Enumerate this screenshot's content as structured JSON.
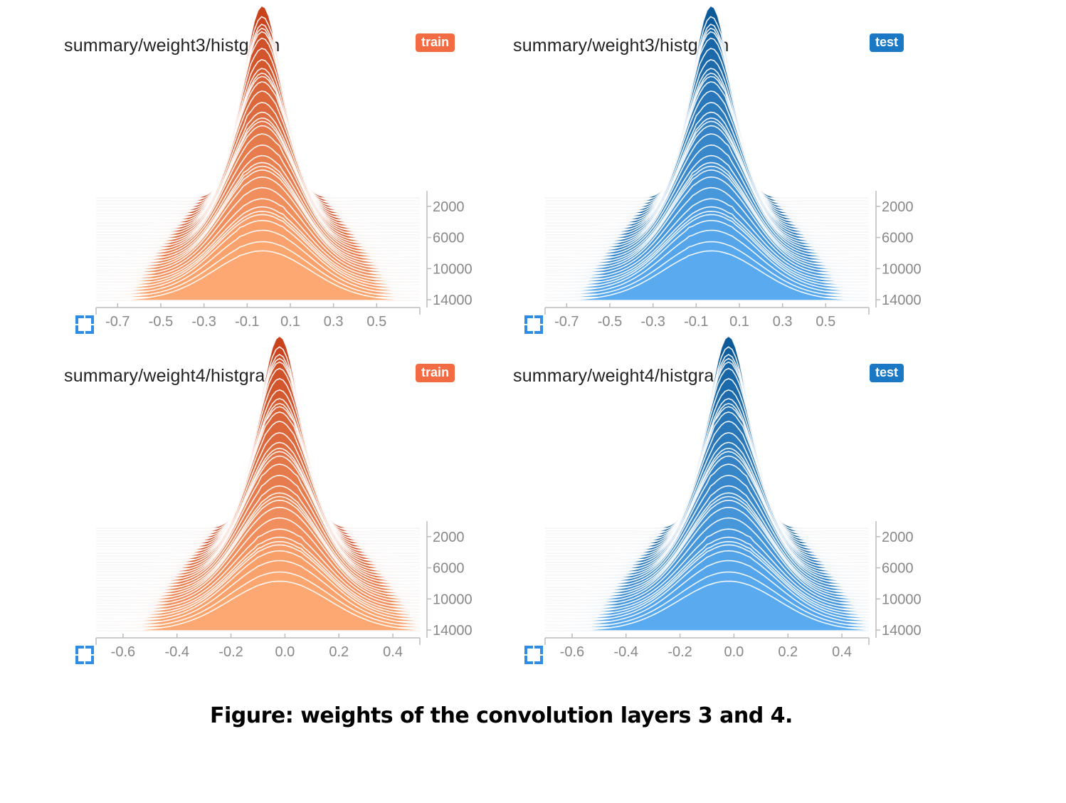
{
  "caption": "Figure: weights of the convolution layers 3 and 4.",
  "colors": {
    "train_badge": "#f26b43",
    "test_badge": "#1b78c4",
    "train_dark": "#c8421c",
    "train_light": "#fda872",
    "test_dark": "#0d5a99",
    "test_light": "#5aaaf0",
    "expand_icon": "#2f8de4"
  },
  "panels": [
    {
      "title": "summary/weight3/histgram",
      "badge": "train",
      "expand_icon": "expand-icon"
    },
    {
      "title": "summary/weight3/histgram",
      "badge": "test",
      "expand_icon": "expand-icon"
    },
    {
      "title": "summary/weight4/histgram",
      "badge": "train",
      "expand_icon": "expand-icon"
    },
    {
      "title": "summary/weight4/histgram",
      "badge": "test",
      "expand_icon": "expand-icon"
    }
  ],
  "chart_data": [
    {
      "type": "area",
      "title": "summary/weight3/histgram",
      "run": "train",
      "xlim": [
        -0.8,
        0.7
      ],
      "x_ticks": [
        "-0.7",
        "-0.5",
        "-0.3",
        "-0.1",
        "0.1",
        "0.3",
        "0.5"
      ],
      "step_ticks": [
        "2000",
        "6000",
        "10000",
        "14000"
      ],
      "step_range": [
        0,
        15000
      ],
      "peak_center": -0.03,
      "peak_width": 0.12,
      "color_dark": "#c8421c",
      "color_light": "#fda872"
    },
    {
      "type": "area",
      "title": "summary/weight3/histgram",
      "run": "test",
      "xlim": [
        -0.8,
        0.7
      ],
      "x_ticks": [
        "-0.7",
        "-0.5",
        "-0.3",
        "-0.1",
        "0.1",
        "0.3",
        "0.5"
      ],
      "step_ticks": [
        "2000",
        "6000",
        "10000",
        "14000"
      ],
      "step_range": [
        0,
        15000
      ],
      "peak_center": -0.03,
      "peak_width": 0.12,
      "color_dark": "#0d5a99",
      "color_light": "#5aaaf0"
    },
    {
      "type": "area",
      "title": "summary/weight4/histgram",
      "run": "train",
      "xlim": [
        -0.7,
        0.5
      ],
      "x_ticks": [
        "-0.6",
        "-0.4",
        "-0.2",
        "0.0",
        "0.2",
        "0.4"
      ],
      "step_ticks": [
        "2000",
        "6000",
        "10000",
        "14000"
      ],
      "step_range": [
        0,
        15000
      ],
      "peak_center": -0.02,
      "peak_width": 0.1,
      "color_dark": "#c8421c",
      "color_light": "#fda872"
    },
    {
      "type": "area",
      "title": "summary/weight4/histgram",
      "run": "test",
      "xlim": [
        -0.7,
        0.5
      ],
      "x_ticks": [
        "-0.6",
        "-0.4",
        "-0.2",
        "0.0",
        "0.2",
        "0.4"
      ],
      "step_ticks": [
        "2000",
        "6000",
        "10000",
        "14000"
      ],
      "step_range": [
        0,
        15000
      ],
      "peak_center": -0.02,
      "peak_width": 0.1,
      "color_dark": "#0d5a99",
      "color_light": "#5aaaf0"
    }
  ]
}
